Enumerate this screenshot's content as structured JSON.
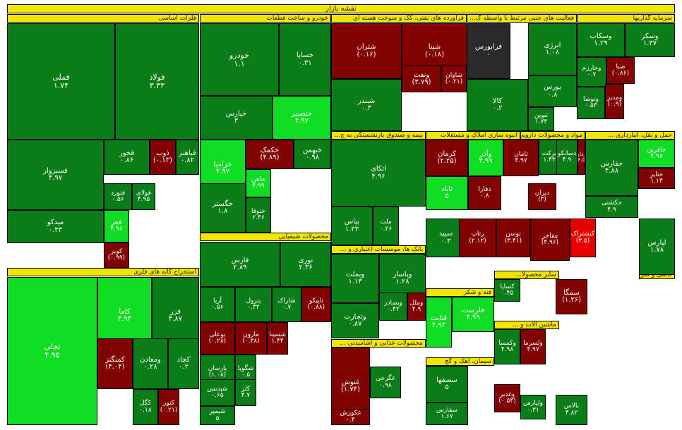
{
  "map_title": "نقشه بازار",
  "colors": {
    "dark_green": "#0b7d18",
    "mid_green": "#18a524",
    "light_green": "#10dc24",
    "dark_red": "#820101",
    "mid_red": "#b00404",
    "bright_red": "#e60000",
    "neutral": "#2a2a2a",
    "header_yellow": "#f2e600"
  },
  "sectors": [
    {
      "label": "فلزات اساسی"
    },
    {
      "label": "خودرو و ساخت قطعات"
    },
    {
      "label": "فرآورده های نفتی، کک و سوخت هسته ای"
    },
    {
      "label": "فعالیت های جنبی مرتبط با واسطه گ..."
    },
    {
      "label": "سرمایه گذاریها"
    },
    {
      "label": "استخراج کانه های فلزی"
    },
    {
      "label": "محصولات شیمیایی"
    },
    {
      "label": "بیمه و صندوق بازنشستگی به ج..."
    },
    {
      "label": "انبوه سازی املاک و مستغلات"
    },
    {
      "label": "مواد و محصولات دارویی"
    },
    {
      "label": "حمل و نقل، انبارداری ..."
    },
    {
      "label": "بانک ها، موسسات اعتباری و ..."
    },
    {
      "label": "کاشی و سرامیک"
    },
    {
      "label": "ماشین آلات و ..."
    },
    {
      "label": "سایر محصولا..."
    },
    {
      "label": "قند و شکر"
    },
    {
      "label": "محصولات غذایی و آشامیدنی ..."
    },
    {
      "label": "سیمان، آهک و گچ"
    }
  ],
  "tiles": [
    {
      "name": "فملی",
      "value": "۱.۷۴"
    },
    {
      "name": "فولاد",
      "value": "۳.۳۳"
    },
    {
      "name": "فسبزوار",
      "value": "۴.۹۷"
    },
    {
      "name": "فخوز",
      "value": "۰.۸۶"
    },
    {
      "name": "ذوب",
      "value": "(۰.۱۳)"
    },
    {
      "name": "فباهنر",
      "value": "۰.۸۲"
    },
    {
      "name": "فنورد",
      "value": "۰.۵۶"
    },
    {
      "name": "فولای",
      "value": "۴.۹۵"
    },
    {
      "name": "فجر",
      "value": "۴.۹۶"
    },
    {
      "name": "میدکو",
      "value": "۰.۳۳"
    },
    {
      "name": "کویر",
      "value": "(۰.۹۹)"
    },
    {
      "name": "خودرو",
      "value": "۱.۱"
    },
    {
      "name": "خساپا",
      "value": "۰.۳۱"
    },
    {
      "name": "خپارس",
      "value": "۳"
    },
    {
      "name": "ختصبیر",
      "value": "۴.۹۷"
    },
    {
      "name": "شتران",
      "value": "(۰.۱۶)"
    },
    {
      "name": "شپنا",
      "value": "(۰.۱۸)"
    },
    {
      "name": "شبندر",
      "value": "۰.۳"
    },
    {
      "name": "شاوان",
      "value": "(۰.۲۱)"
    },
    {
      "name": "ونفت",
      "value": "(۳.۷۹)"
    },
    {
      "name": "فرابورس",
      "value": "۰"
    },
    {
      "name": "کالا",
      "value": "۰.۲"
    },
    {
      "name": "انرژی",
      "value": "۱.۰۸"
    },
    {
      "name": "بورس",
      "value": "۰.۸"
    },
    {
      "name": "تنوین",
      "value": "۱.۷۳"
    },
    {
      "name": "وسکاب",
      "value": "۱.۲۹"
    },
    {
      "name": "وسکر",
      "value": "۱.۳۷"
    },
    {
      "name": "وخارزم",
      "value": "۰.۷"
    },
    {
      "name": "صبا",
      "value": "(۰.۸۶)"
    },
    {
      "name": "وتوصا",
      "value": "۰.۵۳"
    },
    {
      "name": "ومدیر",
      "value": "(۰.۹)"
    },
    {
      "name": "تجلی",
      "value": "۴.۹۵"
    },
    {
      "name": "کاما",
      "value": "۴.۹۳"
    },
    {
      "name": "فزر",
      "value": "۴.۸۷"
    },
    {
      "name": "کمنگنز",
      "value": "(۴.۰۴)"
    },
    {
      "name": "ومعادن",
      "value": "۰.۲۸"
    },
    {
      "name": "کچاد",
      "value": "۰.۲"
    },
    {
      "name": "کگل",
      "value": "۰.۱۸"
    },
    {
      "name": "کنور",
      "value": "(۰.۲۱)"
    },
    {
      "name": "خزامیا",
      "value": "۴.۹۷"
    },
    {
      "name": "خکمک",
      "value": "(۴.۸۹)"
    },
    {
      "name": "خبهمن",
      "value": "۰.۹۸"
    },
    {
      "name": "خگستر",
      "value": "۱.۸"
    },
    {
      "name": "خاهن",
      "value": "۴.۹۹"
    },
    {
      "name": "ختوقا",
      "value": "۲.۴۶"
    },
    {
      "name": "فارس",
      "value": "۲.۸۹"
    },
    {
      "name": "نوری",
      "value": "۲.۳۶"
    },
    {
      "name": "آریا",
      "value": "۰.۵۶"
    },
    {
      "name": "پترول",
      "value": "۰.۳۲"
    },
    {
      "name": "شاراک",
      "value": "۰.۷"
    },
    {
      "name": "تاپیکو",
      "value": "(۰.۸۸)"
    },
    {
      "name": "بوعلی",
      "value": "(۰.۲۸)"
    },
    {
      "name": "مارون",
      "value": "(۰.۳۸)"
    },
    {
      "name": "شسینا",
      "value": "۱.۴۴"
    },
    {
      "name": "پارسان",
      "value": "(۱.۰۸)"
    },
    {
      "name": "شگویا",
      "value": "۰.۵"
    },
    {
      "name": "شپدیس",
      "value": "۰.۶۵"
    },
    {
      "name": "کلر",
      "value": "۴.۷"
    },
    {
      "name": "شیمپر",
      "value": "۵"
    },
    {
      "name": "اتکای",
      "value": "۴.۹۶"
    },
    {
      "name": "بپاس",
      "value": "۱.۳۳"
    },
    {
      "name": "ملت",
      "value": "۰.۲۶"
    },
    {
      "name": "کرمان",
      "value": "(۲.۲۵)"
    },
    {
      "name": "وآذر",
      "value": "۴.۹۹"
    },
    {
      "name": "ثاباد",
      "value": "۵"
    },
    {
      "name": "ثامان",
      "value": "۴.۹۷"
    },
    {
      "name": "دفارا",
      "value": "۰.۸"
    },
    {
      "name": "برکت",
      "value": "۱.۴۳"
    },
    {
      "name": "دیران",
      "value": "(۳)"
    },
    {
      "name": "دسانکو",
      "value": "۴.۹"
    },
    {
      "name": "دزدارو",
      "value": "(۶.۵)"
    },
    {
      "name": "حفارس",
      "value": "۴.۸۸"
    },
    {
      "name": "حکشتی",
      "value": "۴.۹"
    },
    {
      "name": "حافرین",
      "value": "۴.۹۸"
    },
    {
      "name": "حتایر",
      "value": "۱.۱۳"
    },
    {
      "name": "وبملت",
      "value": "۱.۱۳"
    },
    {
      "name": "وپاسار",
      "value": "۱.۲۸"
    },
    {
      "name": "وتجارت",
      "value": "۰.۸۷"
    },
    {
      "name": "وبصادر",
      "value": "۰.۴۲"
    },
    {
      "name": "وملل",
      "value": "۴.۹"
    },
    {
      "name": "سپید",
      "value": "۰.۳"
    },
    {
      "name": "رتاپ",
      "value": "(۲.۱۲)"
    },
    {
      "name": "توسن",
      "value": "(۳.۴۱)"
    },
    {
      "name": "مفاخر",
      "value": "(۴.۹۶)"
    },
    {
      "name": "کبشتراک",
      "value": "(۳.۵)"
    },
    {
      "name": "لپارس",
      "value": "۱.۷۸"
    },
    {
      "name": "فلرست",
      "value": "۴.۹۹"
    },
    {
      "name": "قثابت",
      "value": "۴.۹۴"
    },
    {
      "name": "غنوش",
      "value": "(۱.۷۴)"
    },
    {
      "name": "غگرجی",
      "value": "۰.۹۸"
    },
    {
      "name": "غکورش",
      "value": "۰.۴"
    },
    {
      "name": "سصفها",
      "value": "۵"
    },
    {
      "name": "سفارس",
      "value": "۱.۶۷"
    },
    {
      "name": "وکمسا",
      "value": "۴.۹۸"
    },
    {
      "name": "ولسرما",
      "value": "۴.۹۷"
    },
    {
      "name": "سمگا",
      "value": "(۱.۲۶)"
    },
    {
      "name": "بالاس",
      "value": "۴.۸۲"
    },
    {
      "name": "کساپا",
      "value": "۰.۴۵"
    },
    {
      "name": "وغدیر",
      "value": "(۰.۵۴)"
    },
    {
      "name": "ولپارس",
      "value": "۰.۳۱"
    }
  ]
}
